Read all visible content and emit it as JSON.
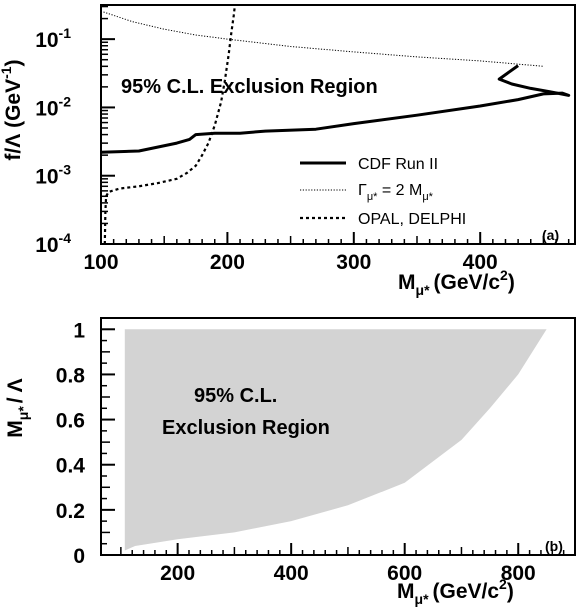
{
  "chart_data": [
    {
      "type": "line",
      "panel": "(a)",
      "xlabel": {
        "main": "M",
        "sub": "μ*",
        "unit": "(GeV/c",
        "sup": "2",
        "close": ")"
      },
      "ylabel": {
        "main": "f/Λ (GeV",
        "sup": "-1",
        "close": ")"
      },
      "xlim": [
        100,
        475
      ],
      "ylim_log10": [
        -4,
        -0.5
      ],
      "xscale": "linear",
      "yscale": "log",
      "xticks": [
        100,
        200,
        300,
        400
      ],
      "xtick_labels": [
        "100",
        "200",
        "300",
        "400"
      ],
      "yticks": [
        0.0001,
        0.001,
        0.01,
        0.1
      ],
      "ytick_labels": [
        {
          "base": "10",
          "exp": "-4"
        },
        {
          "base": "10",
          "exp": "-3"
        },
        {
          "base": "10",
          "exp": "-2"
        },
        {
          "base": "10",
          "exp": "-1"
        }
      ],
      "annotation": "95% C.L.  Exclusion Region",
      "legend_position": "bottom-right",
      "series": [
        {
          "name": "CDF Run II",
          "style": "solid-thick",
          "x": [
            100,
            130,
            160,
            170,
            175,
            190,
            210,
            230,
            270,
            300,
            350,
            400,
            430,
            450,
            465,
            470,
            455,
            440,
            425,
            415,
            430
          ],
          "y": [
            0.0022,
            0.0023,
            0.003,
            0.0034,
            0.004,
            0.0042,
            0.0042,
            0.0045,
            0.0048,
            0.0058,
            0.0077,
            0.0105,
            0.013,
            0.0158,
            0.0162,
            0.015,
            0.017,
            0.019,
            0.022,
            0.026,
            0.041
          ]
        },
        {
          "name": "Γ",
          "name_sub": "μ*",
          "name_rest": " = 2 M",
          "name_rest_sub": "μ*",
          "style": "dotted",
          "x": [
            102,
            125,
            150,
            175,
            200,
            250,
            300,
            350,
            400,
            450
          ],
          "y": [
            0.25,
            0.18,
            0.14,
            0.115,
            0.1,
            0.078,
            0.065,
            0.055,
            0.048,
            0.04
          ]
        },
        {
          "name": "OPAL, DELPHI",
          "style": "dashed",
          "x": [
            103,
            103.5,
            104,
            106,
            115,
            130,
            145,
            160,
            168,
            175,
            180,
            185,
            190,
            195,
            198,
            201,
            203,
            205,
            206
          ],
          "y": [
            0.0001,
            0.0003,
            0.0005,
            0.00058,
            0.00065,
            0.0007,
            0.00078,
            0.0009,
            0.0011,
            0.0014,
            0.002,
            0.003,
            0.0055,
            0.012,
            0.025,
            0.06,
            0.12,
            0.22,
            0.32
          ]
        }
      ]
    },
    {
      "type": "area",
      "panel": "(b)",
      "xlabel": {
        "main": "M",
        "sub": "μ*",
        "unit": "(GeV/c",
        "sup": "2",
        "close": ")"
      },
      "ylabel": {
        "main": "M",
        "sub": "μ*",
        "rest": "/ Λ"
      },
      "xlim": [
        65,
        900
      ],
      "ylim": [
        0,
        1.05
      ],
      "xticks": [
        200,
        400,
        600,
        800
      ],
      "xtick_labels": [
        "200",
        "400",
        "600",
        "800"
      ],
      "yticks": [
        0,
        0.2,
        0.4,
        0.6,
        0.8,
        1
      ],
      "ytick_labels": [
        "0",
        "0.2",
        "0.4",
        "0.6",
        "0.8",
        "1"
      ],
      "annotation_lines": [
        "95% C.L.",
        "Exclusion Region"
      ],
      "fill_color": "#d3d3d3",
      "boundary": {
        "x": [
          107,
          125,
          150,
          200,
          300,
          400,
          500,
          600,
          700,
          750,
          800,
          850
        ],
        "y": [
          0.02,
          0.04,
          0.05,
          0.07,
          0.1,
          0.15,
          0.22,
          0.32,
          0.51,
          0.65,
          0.8,
          1.0
        ]
      }
    }
  ]
}
